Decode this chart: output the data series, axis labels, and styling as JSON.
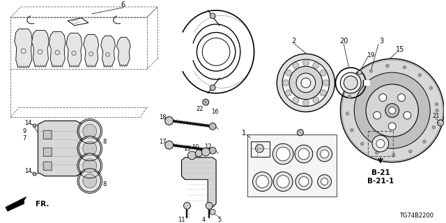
{
  "bg_color": "#ffffff",
  "line_color": "#000000",
  "diagram_code": "TG74B2200",
  "b21_label": "B-21",
  "b211_label": "B-21-1",
  "fr_label": "FR."
}
